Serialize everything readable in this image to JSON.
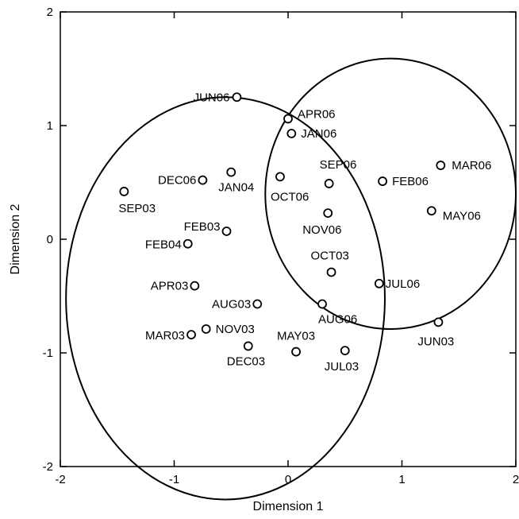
{
  "chart_data": {
    "type": "scatter",
    "title": "",
    "xlabel": "Dimension 1",
    "ylabel": "Dimension 2",
    "xlim": [
      -2,
      2
    ],
    "ylim": [
      -2,
      2
    ],
    "xticks": [
      -2,
      -1,
      0,
      1,
      2
    ],
    "yticks": [
      -2,
      -1,
      0,
      1,
      2
    ],
    "xtick_labels": [
      "-2",
      "-1",
      "0",
      "1",
      "2"
    ],
    "ytick_labels": [
      "-2",
      "-1",
      "0",
      "1",
      "2"
    ],
    "grid": false,
    "legend": "none",
    "points": [
      {
        "label": "JUN06",
        "x": -0.45,
        "y": 1.25
      },
      {
        "label": "APR06",
        "x": 0.0,
        "y": 1.06
      },
      {
        "label": "JAN06",
        "x": 0.03,
        "y": 0.93
      },
      {
        "label": "MAR06",
        "x": 1.34,
        "y": 0.65
      },
      {
        "label": "DEC06",
        "x": -0.75,
        "y": 0.52
      },
      {
        "label": "JAN04",
        "x": -0.5,
        "y": 0.59
      },
      {
        "label": "OCT06",
        "x": -0.07,
        "y": 0.55
      },
      {
        "label": "SEP06",
        "x": 0.36,
        "y": 0.49
      },
      {
        "label": "FEB06",
        "x": 0.83,
        "y": 0.51
      },
      {
        "label": "SEP03",
        "x": -1.44,
        "y": 0.42
      },
      {
        "label": "MAY06",
        "x": 1.26,
        "y": 0.25
      },
      {
        "label": "NOV06",
        "x": 0.35,
        "y": 0.23
      },
      {
        "label": "FEB03",
        "x": -0.54,
        "y": 0.07
      },
      {
        "label": "FEB04",
        "x": -0.88,
        "y": -0.04
      },
      {
        "label": "OCT03",
        "x": 0.38,
        "y": -0.29
      },
      {
        "label": "APR03",
        "x": -0.82,
        "y": -0.41
      },
      {
        "label": "JUL06",
        "x": 0.8,
        "y": -0.39
      },
      {
        "label": "AUG03",
        "x": -0.27,
        "y": -0.57
      },
      {
        "label": "AUG06",
        "x": 0.3,
        "y": -0.57
      },
      {
        "label": "JUN03",
        "x": 1.32,
        "y": -0.73
      },
      {
        "label": "NOV03",
        "x": -0.72,
        "y": -0.79
      },
      {
        "label": "MAR03",
        "x": -0.85,
        "y": -0.84
      },
      {
        "label": "DEC03",
        "x": -0.35,
        "y": -0.94
      },
      {
        "label": "MAY03",
        "x": 0.07,
        "y": -0.99
      },
      {
        "label": "JUL03",
        "x": 0.5,
        "y": -0.98
      }
    ],
    "ellipses": [
      {
        "cx": -0.55,
        "cy": -0.52,
        "rx": 1.4,
        "ry": 1.77
      },
      {
        "cx": 0.9,
        "cy": 0.4,
        "rx": 1.1,
        "ry": 1.19
      }
    ]
  }
}
